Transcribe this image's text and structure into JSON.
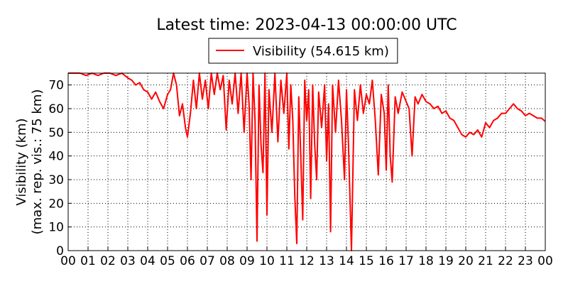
{
  "chart_data": {
    "type": "line",
    "title": "Latest time: 2023-04-13 00:00:00 UTC",
    "y_label": [
      "Visibility (km)",
      "(max. rep. vis.: 75 km)"
    ],
    "xlim": [
      0,
      24
    ],
    "ylim": [
      0,
      75
    ],
    "xticks": [
      {
        "value": 0,
        "label": "00"
      },
      {
        "value": 1,
        "label": "01"
      },
      {
        "value": 2,
        "label": "02"
      },
      {
        "value": 3,
        "label": "03"
      },
      {
        "value": 4,
        "label": "04"
      },
      {
        "value": 5,
        "label": "05"
      },
      {
        "value": 6,
        "label": "06"
      },
      {
        "value": 7,
        "label": "07"
      },
      {
        "value": 8,
        "label": "08"
      },
      {
        "value": 9,
        "label": "09"
      },
      {
        "value": 10,
        "label": "10"
      },
      {
        "value": 11,
        "label": "11"
      },
      {
        "value": 12,
        "label": "12"
      },
      {
        "value": 13,
        "label": "13"
      },
      {
        "value": 14,
        "label": "14"
      },
      {
        "value": 15,
        "label": "15"
      },
      {
        "value": 16,
        "label": "16"
      },
      {
        "value": 17,
        "label": "17"
      },
      {
        "value": 18,
        "label": "18"
      },
      {
        "value": 19,
        "label": "19"
      },
      {
        "value": 20,
        "label": "20"
      },
      {
        "value": 21,
        "label": "21"
      },
      {
        "value": 22,
        "label": "22"
      },
      {
        "value": 23,
        "label": "23"
      },
      {
        "value": 24,
        "label": "00"
      }
    ],
    "yticks": [
      0,
      10,
      20,
      30,
      40,
      50,
      60,
      70
    ],
    "grid": true,
    "legend": "top",
    "x": [
      0,
      0.3,
      0.6,
      0.9,
      1.2,
      1.5,
      1.8,
      2.1,
      2.4,
      2.7,
      3.0,
      3.2,
      3.4,
      3.6,
      3.8,
      4.0,
      4.2,
      4.4,
      4.6,
      4.8,
      5.0,
      5.15,
      5.3,
      5.45,
      5.6,
      5.75,
      5.9,
      6.0,
      6.15,
      6.3,
      6.45,
      6.6,
      6.75,
      6.9,
      7.05,
      7.2,
      7.35,
      7.5,
      7.65,
      7.8,
      7.95,
      8.1,
      8.25,
      8.4,
      8.55,
      8.7,
      8.85,
      9.0,
      9.1,
      9.2,
      9.3,
      9.4,
      9.5,
      9.6,
      9.7,
      9.8,
      9.9,
      10.0,
      10.1,
      10.25,
      10.4,
      10.55,
      10.7,
      10.85,
      11.0,
      11.1,
      11.2,
      11.3,
      11.4,
      11.5,
      11.6,
      11.7,
      11.8,
      11.9,
      12.0,
      12.1,
      12.2,
      12.3,
      12.4,
      12.5,
      12.6,
      12.75,
      12.9,
      13.0,
      13.1,
      13.2,
      13.3,
      13.45,
      13.6,
      13.75,
      13.9,
      14.0,
      14.1,
      14.25,
      14.4,
      14.55,
      14.7,
      14.85,
      15.0,
      15.15,
      15.3,
      15.45,
      15.6,
      15.75,
      15.9,
      16.0,
      16.1,
      16.2,
      16.3,
      16.45,
      16.6,
      16.8,
      17.0,
      17.15,
      17.3,
      17.45,
      17.6,
      17.8,
      18.0,
      18.2,
      18.4,
      18.6,
      18.8,
      19.0,
      19.2,
      19.4,
      19.6,
      19.8,
      20.0,
      20.2,
      20.4,
      20.6,
      20.8,
      21.0,
      21.2,
      21.4,
      21.6,
      21.8,
      22.0,
      22.2,
      22.4,
      22.6,
      22.8,
      23.0,
      23.2,
      23.4,
      23.6,
      23.8,
      24.0
    ],
    "series": [
      {
        "name": "Visibility (54.615 km)",
        "color": "#ff0000",
        "values": [
          75,
          75,
          75,
          74,
          75,
          74,
          75,
          75,
          74,
          75,
          73,
          72,
          70,
          71,
          68,
          67,
          64,
          67,
          63,
          60,
          66,
          68,
          75,
          70,
          57,
          62,
          52,
          48,
          58,
          72,
          60,
          75,
          64,
          72,
          60,
          75,
          66,
          75,
          68,
          74,
          51,
          72,
          62,
          75,
          58,
          75,
          50,
          75,
          62,
          30,
          75,
          55,
          4,
          70,
          45,
          33,
          75,
          15,
          68,
          50,
          75,
          46,
          72,
          58,
          75,
          43,
          70,
          55,
          23,
          3,
          65,
          40,
          13,
          72,
          55,
          68,
          22,
          70,
          45,
          30,
          67,
          52,
          70,
          38,
          62,
          8,
          70,
          50,
          72,
          55,
          30,
          68,
          45,
          0,
          68,
          55,
          70,
          58,
          66,
          62,
          72,
          55,
          32,
          66,
          58,
          34,
          70,
          40,
          29,
          65,
          58,
          67,
          63,
          60,
          40,
          65,
          62,
          66,
          63,
          62,
          60,
          61,
          58,
          59,
          56,
          55,
          52,
          49,
          48,
          50,
          49,
          51,
          48,
          54,
          52,
          55,
          56,
          58,
          58,
          60,
          62,
          60,
          59,
          57,
          58,
          57,
          56,
          56,
          54.6
        ]
      }
    ]
  }
}
